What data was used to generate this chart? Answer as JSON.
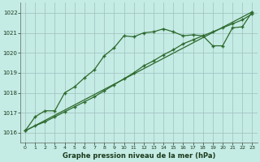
{
  "xlabel": "Graphe pression niveau de la mer (hPa)",
  "bg_color": "#c5ebe5",
  "grid_color": "#9dbfbb",
  "line_color": "#2d6a2d",
  "xlim": [
    -0.5,
    23.5
  ],
  "ylim": [
    1015.5,
    1022.5
  ],
  "yticks": [
    1016,
    1017,
    1018,
    1019,
    1020,
    1021,
    1022
  ],
  "xticks": [
    0,
    1,
    2,
    3,
    4,
    5,
    6,
    7,
    8,
    9,
    10,
    11,
    12,
    13,
    14,
    15,
    16,
    17,
    18,
    19,
    20,
    21,
    22,
    23
  ],
  "series1_x": [
    0,
    1,
    2,
    3,
    4,
    5,
    6,
    7,
    8,
    9,
    10,
    11,
    12,
    13,
    14,
    15,
    16,
    17,
    18,
    19,
    20,
    21,
    22,
    23
  ],
  "series1_y": [
    1016.1,
    1016.8,
    1017.1,
    1017.1,
    1018.0,
    1018.3,
    1018.75,
    1019.15,
    1019.85,
    1020.25,
    1020.85,
    1020.8,
    1021.0,
    1021.05,
    1021.2,
    1021.05,
    1020.85,
    1020.9,
    1020.85,
    1020.35,
    1020.35,
    1021.25,
    1021.3,
    1022.05
  ],
  "series2_x": [
    0,
    1,
    2,
    3,
    4,
    5,
    6,
    7,
    8,
    9,
    10,
    11,
    12,
    13,
    14,
    15,
    16,
    17,
    18,
    19,
    20,
    21,
    22,
    23
  ],
  "series2_y": [
    1016.1,
    1016.35,
    1016.55,
    1016.8,
    1017.05,
    1017.3,
    1017.55,
    1017.8,
    1018.1,
    1018.4,
    1018.7,
    1019.0,
    1019.35,
    1019.6,
    1019.9,
    1020.15,
    1020.45,
    1020.65,
    1020.85,
    1021.05,
    1021.25,
    1021.45,
    1021.65,
    1021.95
  ],
  "series3_x": [
    0,
    23
  ],
  "series3_y": [
    1016.1,
    1022.05
  ]
}
